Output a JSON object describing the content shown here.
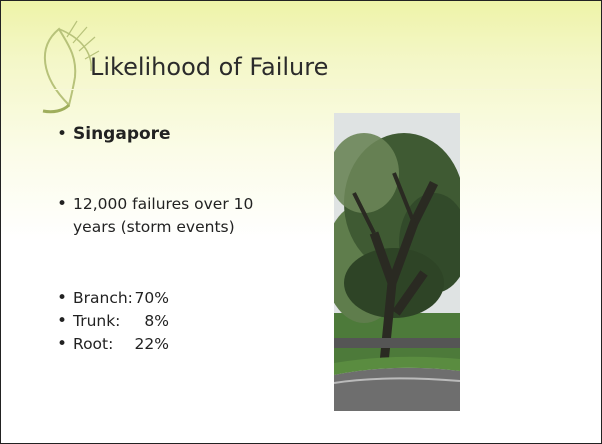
{
  "slide": {
    "title": "Likelihood of Failure",
    "bullets": [
      {
        "text": "Singapore"
      },
      {
        "text": "12,000 failures over 10 years (storm events)"
      },
      {
        "label": "Branch:",
        "value": "70%"
      },
      {
        "label": "Trunk:",
        "value": "8%"
      },
      {
        "label": "Root:",
        "value": "22%"
      }
    ]
  }
}
